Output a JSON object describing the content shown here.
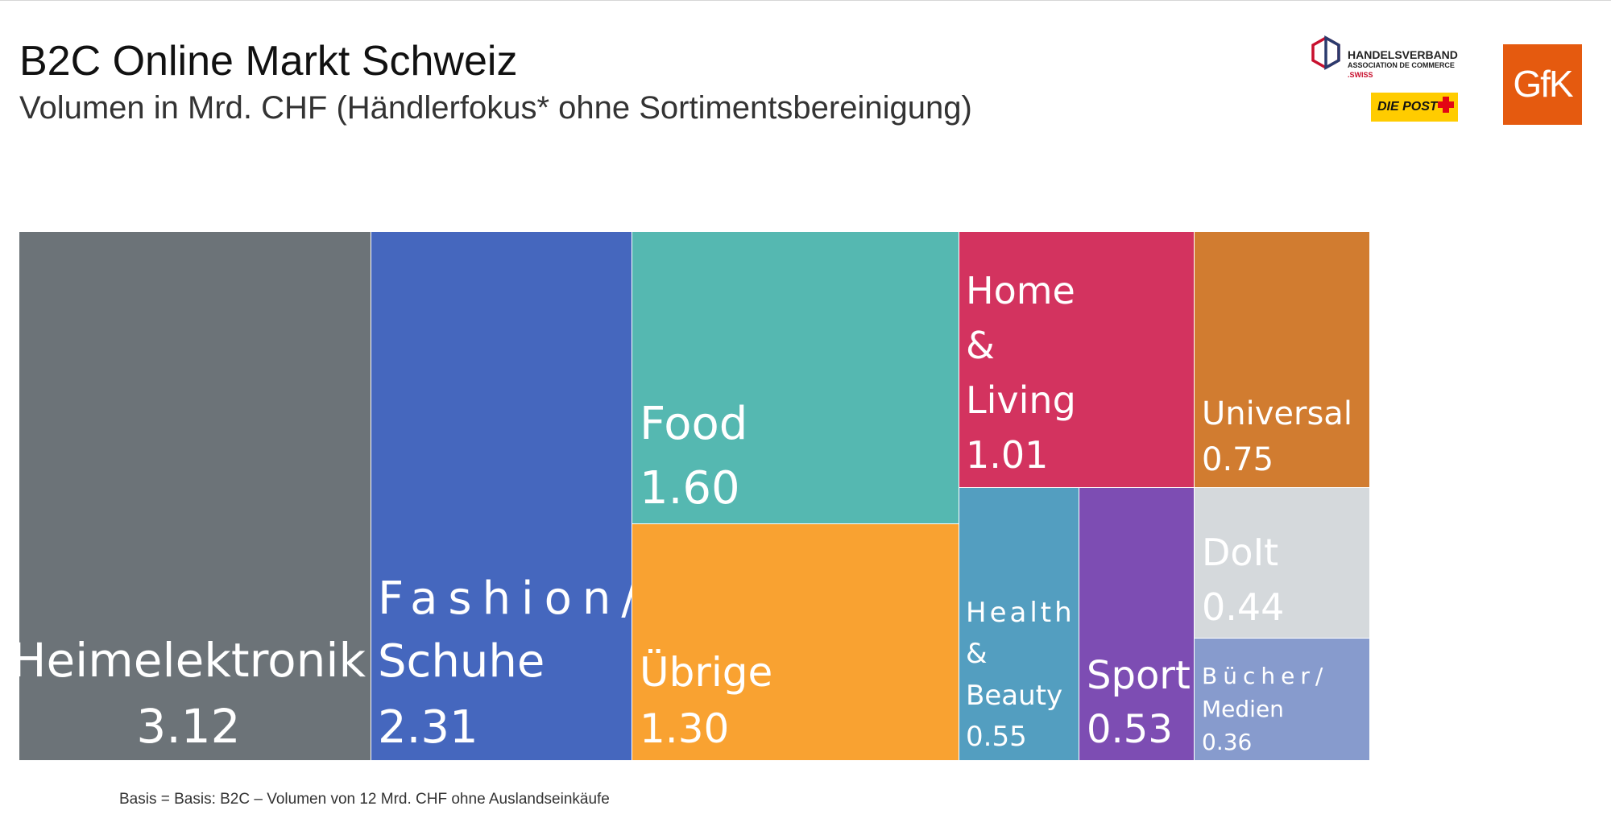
{
  "header": {
    "title": "B2C Online Markt Schweiz",
    "subtitle": "Volumen in Mrd. CHF (Händlerfokus* ohne Sortimentsbereinigung)"
  },
  "logos": {
    "handelsverband": {
      "name": "HANDELSVERBAND",
      "sub": "ASSOCIATION DE COMMERCE",
      "suffix": ".SWISS"
    },
    "post": {
      "text": "DIE POST"
    },
    "gfk": {
      "text": "GfK"
    }
  },
  "footnote": "Basis = Basis: B2C – Volumen von 12 Mrd. CHF ohne Auslandseinkäufe",
  "chart_data": {
    "type": "treemap",
    "unit": "Mrd. CHF",
    "items": [
      {
        "category": "Heimelektronik",
        "value": 3.12,
        "display": "3.12",
        "color": "#6c7378"
      },
      {
        "category": "Fashion/ Schuhe",
        "value": 2.31,
        "display": "2.31",
        "color": "#4567be"
      },
      {
        "category": "Food",
        "value": 1.6,
        "display": "1.60",
        "color": "#55b8b1"
      },
      {
        "category": "Übrige",
        "value": 1.3,
        "display": "1.30",
        "color": "#f9a231"
      },
      {
        "category": "Home & Living",
        "value": 1.01,
        "display": "1.01",
        "color": "#d3335f"
      },
      {
        "category": "Universal",
        "value": 0.75,
        "display": "0.75",
        "color": "#d17c30"
      },
      {
        "category": "Health & Beauty",
        "value": 0.55,
        "display": "0.55",
        "color": "#539ec0"
      },
      {
        "category": "Sport",
        "value": 0.53,
        "display": "0.53",
        "color": "#7d4db3"
      },
      {
        "category": "DoIt",
        "value": 0.44,
        "display": "0.44",
        "color": "#d5d9dc"
      },
      {
        "category": "Bücher/ Medien",
        "value": 0.36,
        "display": "0.36",
        "color": "#879bcd"
      }
    ]
  }
}
